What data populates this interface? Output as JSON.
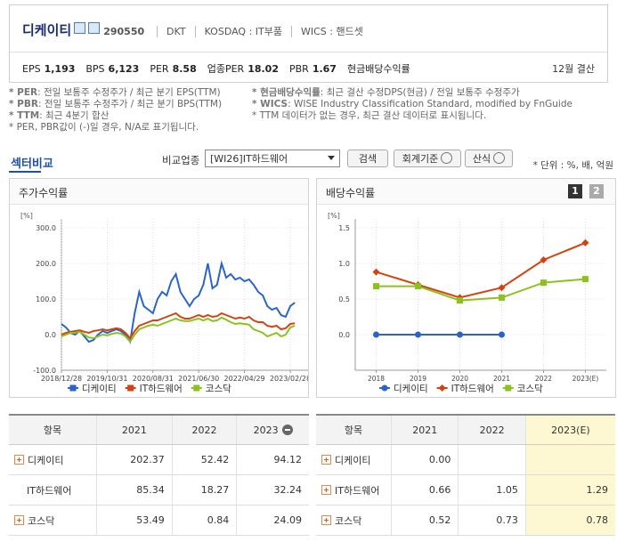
{
  "header": {
    "name": "디케이티",
    "code": "290550",
    "tags": [
      "DKT",
      "KOSDAQ : IT부품",
      "WICS : 핸드셋"
    ],
    "metrics": [
      {
        "label": "EPS",
        "value": "1,193"
      },
      {
        "label": "BPS",
        "value": "6,123"
      },
      {
        "label": "PER",
        "value": "8.58"
      },
      {
        "label": "업종PER",
        "value": "18.02"
      },
      {
        "label": "PBR",
        "value": "1.67"
      },
      {
        "label": "현금배당수익률"
      }
    ],
    "settlement": "12월 결산"
  },
  "notes": {
    "left": [
      {
        "term": "* PER",
        "text": ": 전일 보통주 수정주가 / 최근 분기 EPS(TTM)"
      },
      {
        "term": "* PBR",
        "text": ": 전일 보통주 수정주가 / 최근 분기 BPS(TTM)"
      },
      {
        "term": "* TTM",
        "text": ": 최근 4분기 합산"
      },
      {
        "text": "* PER, PBR값이 (-)일 경우, N/A로 표기됩니다."
      }
    ],
    "right": [
      {
        "term": "* 현금배당수익률",
        "text": ": 최근 결산 수정DPS(현금) / 전일 보통주 수정주가"
      },
      {
        "term": "* WICS",
        "text": ": WISE Industry Classification Standard, modified by FnGuide"
      },
      {
        "text": "* TTM 데이터가 없는 경우, 최근 결산 데이터로 표시됩니다."
      }
    ]
  },
  "section": {
    "title": "섹터비교",
    "compare_label": "비교업종",
    "select": "[WI26]IT하드웨어",
    "buttons": [
      "검색",
      "회계기준",
      "산식"
    ],
    "unit": "* 단위 : %, 배, 억원"
  },
  "dividend_tabs": [
    "1",
    "2"
  ],
  "chart_data": [
    {
      "type": "line",
      "title": "주가수익률",
      "y_unit": "[%]",
      "categories": [
        "2018/12/28",
        null,
        null,
        null,
        null,
        null,
        null,
        null,
        null,
        null,
        "2019/10/31",
        null,
        null,
        null,
        null,
        null,
        null,
        null,
        null,
        null,
        "2020/08/31",
        null,
        null,
        null,
        null,
        null,
        null,
        null,
        null,
        null,
        "2021/06/30",
        null,
        null,
        null,
        null,
        null,
        null,
        null,
        null,
        null,
        "2022/04/29",
        null,
        null,
        null,
        null,
        null,
        null,
        null,
        null,
        null,
        "2023/02/28",
        null
      ],
      "ylim": [
        -100,
        300
      ],
      "yticks": [
        {
          "value": -100,
          "label": "-100.0"
        },
        {
          "value": 0,
          "label": "0.0"
        },
        {
          "value": 100,
          "label": "100.0"
        },
        {
          "value": 200,
          "label": "200.0"
        },
        {
          "value": 300,
          "label": "300.0"
        }
      ],
      "grid": true,
      "series": [
        {
          "name": "디케이티",
          "color": "#2a63c9",
          "values": [
            30,
            20,
            5,
            0,
            10,
            -5,
            -20,
            -15,
            0,
            10,
            5,
            10,
            15,
            10,
            0,
            -20,
            60,
            120,
            80,
            70,
            60,
            100,
            120,
            110,
            150,
            170,
            120,
            100,
            80,
            100,
            110,
            140,
            200,
            130,
            140,
            200,
            160,
            170,
            155,
            160,
            150,
            155,
            140,
            120,
            110,
            80,
            70,
            75,
            55,
            50,
            80,
            90
          ]
        },
        {
          "name": "IT하드웨어",
          "color": "#d6420f",
          "values": [
            0,
            5,
            8,
            10,
            12,
            8,
            5,
            10,
            12,
            15,
            12,
            15,
            18,
            15,
            5,
            -10,
            10,
            25,
            30,
            35,
            40,
            40,
            45,
            50,
            55,
            60,
            50,
            45,
            45,
            50,
            55,
            50,
            55,
            50,
            52,
            60,
            55,
            50,
            45,
            48,
            45,
            50,
            40,
            35,
            35,
            25,
            22,
            25,
            15,
            18,
            30,
            32
          ]
        },
        {
          "name": "코스닥",
          "color": "#8cc21e",
          "values": [
            -5,
            0,
            5,
            5,
            8,
            0,
            -8,
            -10,
            -5,
            0,
            -2,
            2,
            5,
            3,
            -5,
            -20,
            0,
            15,
            20,
            25,
            28,
            25,
            30,
            35,
            40,
            45,
            40,
            38,
            38,
            42,
            45,
            40,
            45,
            38,
            40,
            48,
            42,
            35,
            30,
            32,
            30,
            28,
            15,
            10,
            5,
            -5,
            0,
            5,
            -5,
            0,
            20,
            25
          ]
        }
      ]
    },
    {
      "type": "line",
      "title": "배당수익률",
      "y_unit": "[%]",
      "categories": [
        "2018",
        "2019",
        "2020",
        "2021",
        "2022",
        "2023(E)"
      ],
      "ylim": [
        -0.5,
        1.5
      ],
      "yticks": [
        {
          "value": 0,
          "label": "0.0"
        },
        {
          "value": 0.5,
          "label": "0.5"
        },
        {
          "value": 1,
          "label": "1.0"
        },
        {
          "value": 1.5,
          "label": "1.5"
        }
      ],
      "grid": true,
      "series": [
        {
          "name": "디케이티",
          "color": "#2a63c9",
          "marker": "circle",
          "values": [
            0,
            0,
            0,
            0,
            null,
            null
          ]
        },
        {
          "name": "IT하드웨어",
          "color": "#d6420f",
          "marker": "diamond",
          "values": [
            0.88,
            0.7,
            0.52,
            0.66,
            1.05,
            1.29
          ]
        },
        {
          "name": "코스닥",
          "color": "#8cc21e",
          "marker": "square",
          "values": [
            0.68,
            0.68,
            0.48,
            0.52,
            0.73,
            0.78
          ]
        }
      ]
    }
  ],
  "tables": [
    {
      "headers": [
        "항목",
        "2021",
        "2022",
        "2023"
      ],
      "rows": [
        [
          "디케이티",
          "202.37",
          "52.42",
          "94.12"
        ],
        [
          "IT하드웨어",
          "85.34",
          "18.27",
          "32.24"
        ],
        [
          "코스닥",
          "53.49",
          "0.84",
          "24.09"
        ]
      ]
    },
    {
      "headers": [
        "항목",
        "2021",
        "2022",
        "2023(E)"
      ],
      "rows": [
        [
          "디케이티",
          "0.00",
          null,
          null
        ],
        [
          "IT하드웨어",
          "0.66",
          "1.05",
          "1.29"
        ],
        [
          "코스닥",
          "0.52",
          "0.73",
          "0.78"
        ]
      ]
    }
  ]
}
